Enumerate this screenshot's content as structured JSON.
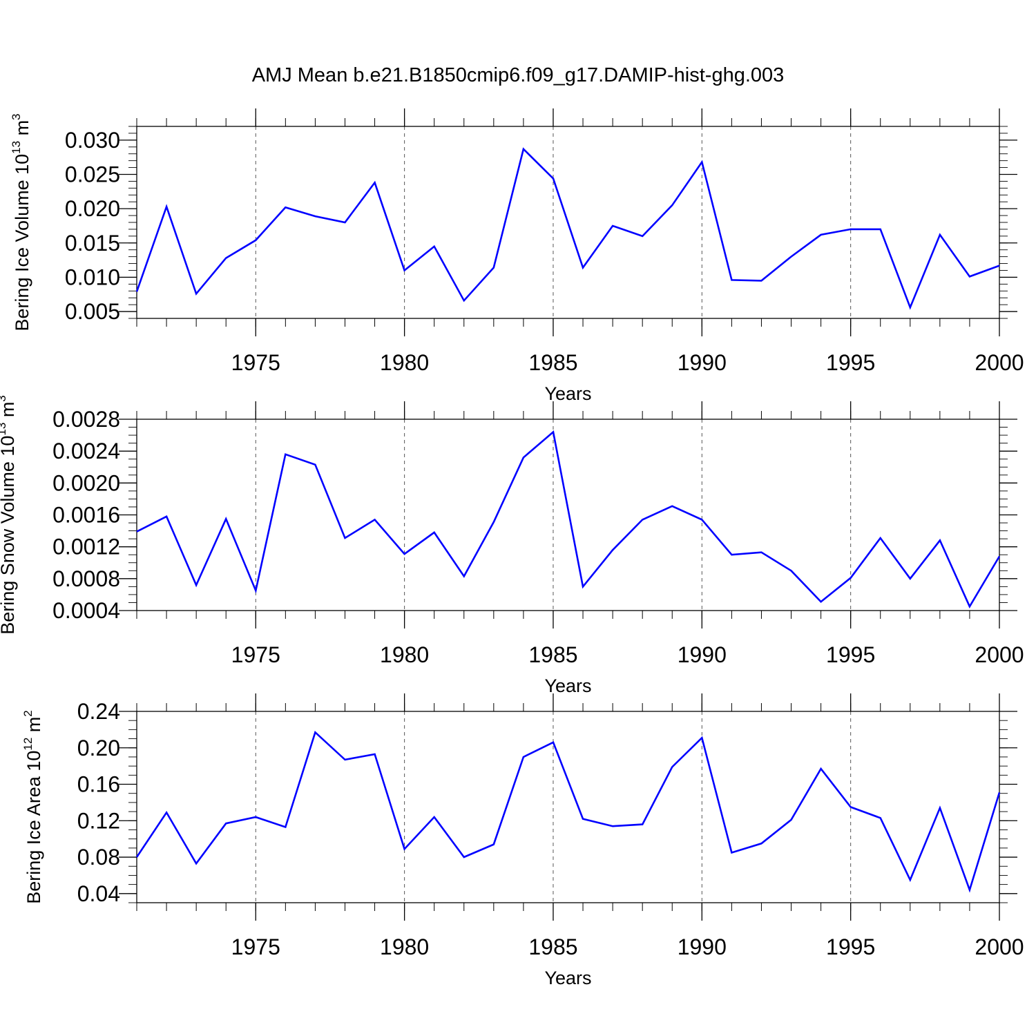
{
  "title": "AMJ Mean b.e21.B1850cmip6.f09_g17.DAMIP-hist-ghg.003",
  "style": {
    "line_color": "#0000ff",
    "axis_color": "#000000",
    "grid_color": "#555555"
  },
  "chart_data": [
    {
      "type": "line",
      "title": "AMJ Mean b.e21.B1850cmip6.f09_g17.DAMIP-hist-ghg.003",
      "xlabel": "Years",
      "ylabel": {
        "main": "Bering Ice Volume 10",
        "exp": "13",
        "unit": " m",
        "unit_exp": "3"
      },
      "xlim": [
        1971,
        2000
      ],
      "ylim": [
        0.004,
        0.032
      ],
      "xticks": [
        1975,
        1980,
        1985,
        1990,
        1995,
        2000
      ],
      "yticks": [
        0.005,
        0.01,
        0.015,
        0.02,
        0.025,
        0.03
      ],
      "ytick_labels": [
        "0.005",
        "0.010",
        "0.015",
        "0.020",
        "0.025",
        "0.030"
      ],
      "y_minor_step": 0.001,
      "grid": "dashed vertical at major x ticks",
      "x": [
        1971,
        1972,
        1973,
        1974,
        1975,
        1976,
        1977,
        1978,
        1979,
        1980,
        1981,
        1982,
        1983,
        1984,
        1985,
        1986,
        1987,
        1988,
        1989,
        1990,
        1991,
        1992,
        1993,
        1994,
        1995,
        1996,
        1997,
        1998,
        1999,
        2000
      ],
      "series": [
        {
          "values": [
            0.0079,
            0.0203,
            0.0076,
            0.0128,
            0.0154,
            0.0202,
            0.0189,
            0.018,
            0.0238,
            0.011,
            0.0145,
            0.0066,
            0.0114,
            0.0287,
            0.0244,
            0.0114,
            0.0175,
            0.016,
            0.0205,
            0.0268,
            0.0096,
            0.0095,
            0.013,
            0.0162,
            0.017,
            0.017,
            0.0056,
            0.0162,
            0.0101,
            0.0117
          ]
        }
      ]
    },
    {
      "type": "line",
      "xlabel": "Years",
      "ylabel": {
        "main": "Bering Snow Volume 10",
        "exp": "13",
        "unit": " m",
        "unit_exp": "3"
      },
      "xlim": [
        1971,
        2000
      ],
      "ylim": [
        0.0004,
        0.0028
      ],
      "xticks": [
        1975,
        1980,
        1985,
        1990,
        1995,
        2000
      ],
      "yticks": [
        0.0004,
        0.0008,
        0.0012,
        0.0016,
        0.002,
        0.0024,
        0.0028
      ],
      "ytick_labels": [
        "0.0004",
        "0.0008",
        "0.0012",
        "0.0016",
        "0.0020",
        "0.0024",
        "0.0028"
      ],
      "y_minor_step": 0.0001,
      "grid": "dashed vertical at major x ticks",
      "x": [
        1971,
        1972,
        1973,
        1974,
        1975,
        1976,
        1977,
        1978,
        1979,
        1980,
        1981,
        1982,
        1983,
        1984,
        1985,
        1986,
        1987,
        1988,
        1989,
        1990,
        1991,
        1992,
        1993,
        1994,
        1995,
        1996,
        1997,
        1998,
        1999,
        2000
      ],
      "series": [
        {
          "values": [
            0.00139,
            0.00158,
            0.00072,
            0.00155,
            0.00065,
            0.00236,
            0.00223,
            0.00131,
            0.00154,
            0.00111,
            0.00138,
            0.00083,
            0.00151,
            0.00232,
            0.00264,
            0.0007,
            0.00116,
            0.00154,
            0.00171,
            0.00154,
            0.0011,
            0.00113,
            0.0009,
            0.00051,
            0.00081,
            0.00131,
            0.0008,
            0.00128,
            0.00045,
            0.00108
          ]
        }
      ]
    },
    {
      "type": "line",
      "xlabel": "Years",
      "ylabel": {
        "main": "Bering Ice Area 10",
        "exp": "12",
        "unit": " m",
        "unit_exp": "2"
      },
      "xlim": [
        1971,
        2000
      ],
      "ylim": [
        0.03,
        0.24
      ],
      "xticks": [
        1975,
        1980,
        1985,
        1990,
        1995,
        2000
      ],
      "yticks": [
        0.04,
        0.08,
        0.12,
        0.16,
        0.2,
        0.24
      ],
      "ytick_labels": [
        "0.04",
        "0.08",
        "0.12",
        "0.16",
        "0.20",
        "0.24"
      ],
      "y_minor_step": 0.01,
      "grid": "dashed vertical at major x ticks",
      "x": [
        1971,
        1972,
        1973,
        1974,
        1975,
        1976,
        1977,
        1978,
        1979,
        1980,
        1981,
        1982,
        1983,
        1984,
        1985,
        1986,
        1987,
        1988,
        1989,
        1990,
        1991,
        1992,
        1993,
        1994,
        1995,
        1996,
        1997,
        1998,
        1999,
        2000
      ],
      "series": [
        {
          "values": [
            0.08,
            0.129,
            0.073,
            0.117,
            0.124,
            0.113,
            0.217,
            0.187,
            0.193,
            0.089,
            0.124,
            0.08,
            0.094,
            0.19,
            0.206,
            0.122,
            0.114,
            0.116,
            0.179,
            0.211,
            0.085,
            0.095,
            0.121,
            0.177,
            0.135,
            0.123,
            0.055,
            0.134,
            0.044,
            0.151
          ]
        }
      ]
    }
  ]
}
